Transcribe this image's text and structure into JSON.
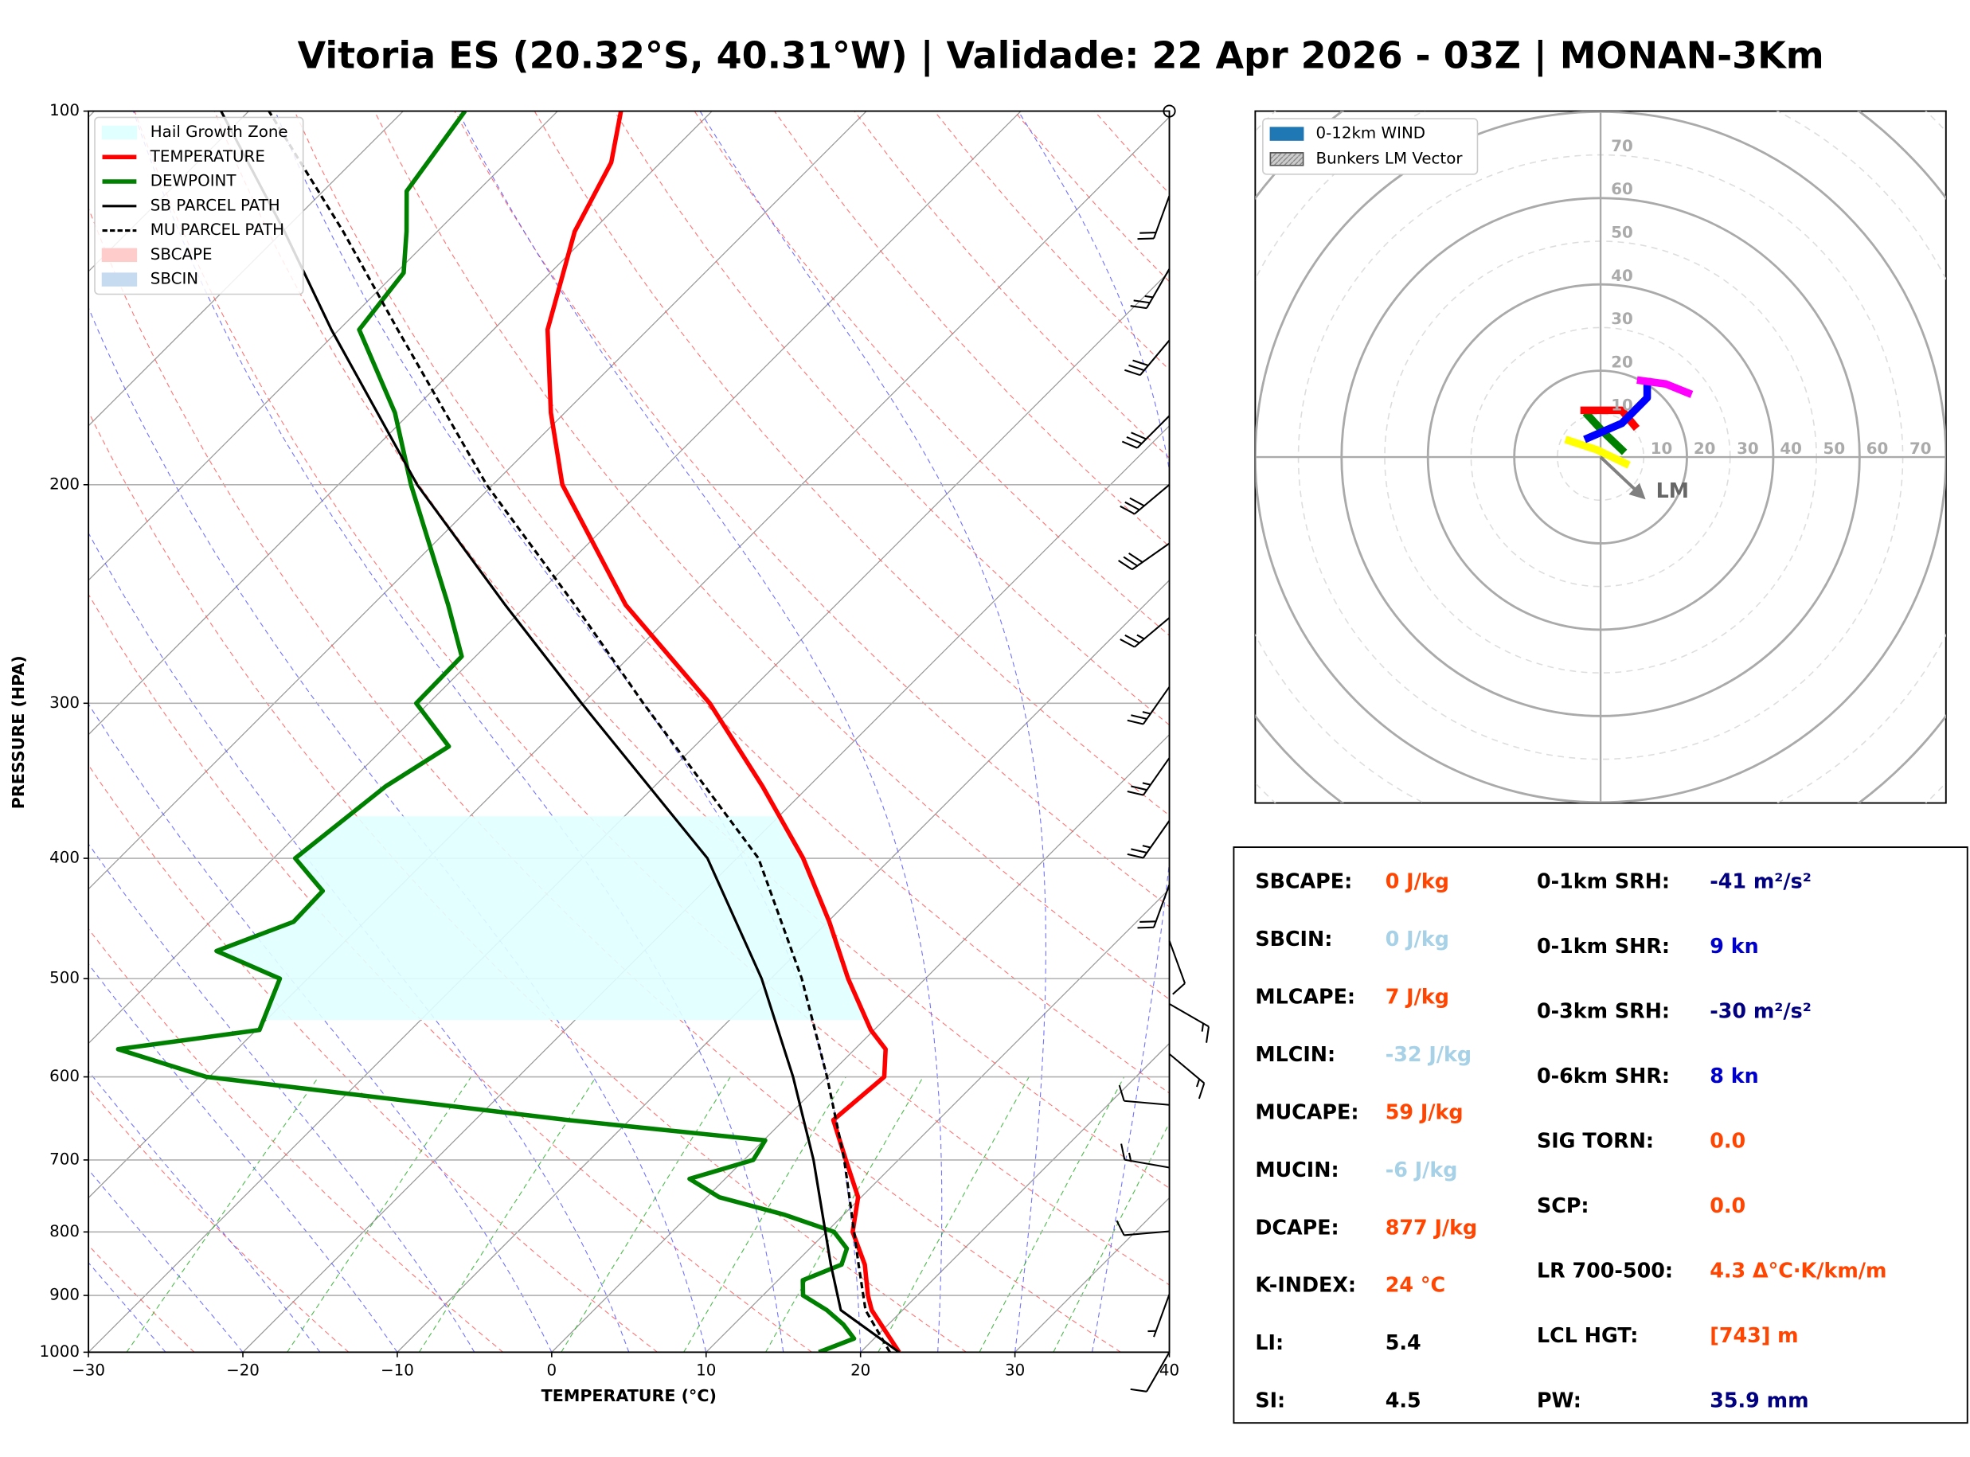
{
  "chart_data": [
    {
      "type": "skewt",
      "title": "Vitoria ES (20.32°S, 40.31°W) | Validade: 22 Apr 2026 - 03Z | MONAN-3Km",
      "xlabel": "TEMPERATURE (°C)",
      "ylabel": "PRESSURE (HPA)",
      "xlim": [
        -30,
        40
      ],
      "ylim": [
        1000,
        100
      ],
      "log_y": true,
      "xticks": [
        {
          "value": -30,
          "label": "−30"
        },
        {
          "value": -20,
          "label": "−20"
        },
        {
          "value": -10,
          "label": "−10"
        },
        0,
        10,
        20,
        30,
        40
      ],
      "yticks": [
        100,
        200,
        300,
        400,
        500,
        600,
        700,
        800,
        900,
        1000
      ],
      "grid": true,
      "legend": "upper left",
      "series": [
        {
          "name": "TEMPERATURE",
          "color": "#ff0000",
          "dash": false,
          "pressure": [
            1000,
            925,
            900,
            850,
            800,
            750,
            700,
            650,
            600,
            570,
            550,
            500,
            450,
            400,
            350,
            300,
            250,
            200,
            175,
            150,
            125,
            110,
            100
          ],
          "values": [
            22.5,
            18.0,
            16.8,
            14.6,
            11.7,
            9.8,
            6.6,
            3.2,
            3.7,
            2.0,
            -0.2,
            -5.0,
            -9.9,
            -15.7,
            -23.0,
            -31.8,
            -43.6,
            -55.5,
            -60.9,
            -66.5,
            -71.1,
            -73.2,
            -75.9
          ]
        },
        {
          "name": "DEWPOINT",
          "color": "#008000",
          "dash": false,
          "pressure": [
            1000,
            975,
            950,
            925,
            900,
            875,
            850,
            825,
            800,
            775,
            750,
            725,
            700,
            675,
            650,
            600,
            570,
            550,
            500,
            475,
            450,
            425,
            400,
            350,
            325,
            300,
            275,
            250,
            200,
            175,
            150,
            135,
            125,
            116,
            100
          ],
          "values": [
            17.3,
            18.7,
            17.1,
            15.1,
            12.6,
            11.6,
            13.1,
            12.4,
            10.5,
            6.2,
            0.8,
            -2.3,
            0.6,
            0.1,
            -14.0,
            -40.2,
            -47.7,
            -39.8,
            -41.8,
            -47.7,
            -44.6,
            -44.7,
            -48.6,
            -47.4,
            -45.9,
            -50.8,
            -50.9,
            -55.1,
            -65.3,
            -71.0,
            -78.7,
            -79.5,
            -82.0,
            -84.6,
            -86.0
          ]
        },
        {
          "name": "SB PARCEL PATH",
          "color": "#000000",
          "dash": false,
          "pressure": [
            1000,
            925,
            850,
            700,
            600,
            500,
            400,
            300,
            250,
            200,
            150,
            125,
            100
          ],
          "values": [
            22.5,
            16.0,
            12.4,
            4.5,
            -2.2,
            -10.6,
            -21.9,
            -40.1,
            -51.4,
            -64.9,
            -80.5,
            -89.9,
            -101.8
          ]
        },
        {
          "name": "MU PARCEL PATH",
          "color": "#000000",
          "dash": true,
          "pressure": [
            1000,
            925,
            850,
            700,
            600,
            500,
            400,
            300,
            250,
            200,
            150,
            125,
            100
          ],
          "values": [
            21.9,
            17.6,
            14.2,
            6.5,
            0.0,
            -8.0,
            -18.6,
            -36.1,
            -46.9,
            -60.4,
            -76.2,
            -86.1,
            -98.7
          ]
        }
      ],
      "areas": [
        {
          "name": "Hail Growth Zone",
          "color": "#e0ffff",
          "hpa": [
            540,
            370
          ]
        },
        {
          "name": "SBCAPE",
          "color": "#ffcccc"
        },
        {
          "name": "SBCIN",
          "color": "#c6dbef"
        }
      ],
      "wind": {
        "pressure": [
          117,
          134,
          153,
          176,
          200,
          223,
          256,
          291,
          332,
          373,
          420,
          466,
          524,
          575,
          632,
          710,
          799,
          898,
          1000
        ],
        "direction": [
          200,
          210,
          220,
          225,
          230,
          235,
          230,
          215,
          215,
          215,
          200,
          160,
          120,
          130,
          275,
          280,
          265,
          200,
          210
        ],
        "speed": [
          20,
          25,
          30,
          30,
          30,
          30,
          25,
          25,
          25,
          25,
          20,
          10,
          15,
          15,
          10,
          15,
          10,
          5,
          10
        ]
      }
    },
    {
      "type": "hodograph",
      "xlim": [
        -80,
        80
      ],
      "ylim": [
        -80,
        80
      ],
      "ticks": [
        10,
        20,
        30,
        40,
        50,
        60,
        70
      ],
      "legend": [
        {
          "name": "0-12km WIND",
          "color": "#1f77b4"
        },
        {
          "name": "Bunkers LM Vector",
          "color": "#999999"
        }
      ],
      "segments": [
        {
          "color": "#ffff00",
          "u": [
            5.8,
            -0.9,
            -7.3
          ],
          "v": [
            -1.5,
            1.7,
            3.8
          ]
        },
        {
          "color": "#008000",
          "u": [
            4.9,
            0.6,
            -2.9
          ],
          "v": [
            1.7,
            5.8,
            9.6
          ]
        },
        {
          "color": "#ff0000",
          "u": [
            -3.8,
            4.9,
            7.8
          ],
          "v": [
            10.8,
            10.8,
            7.3
          ]
        },
        {
          "color": "#0000ff",
          "u": [
            -2.9,
            4.9,
            10.8,
            10.8
          ],
          "v": [
            4.4,
            7.8,
            13.7,
            17.4
          ]
        },
        {
          "color": "#ff00ff",
          "u": [
            9.3,
            15.1,
            20.3
          ],
          "v": [
            17.7,
            16.9,
            14.8
          ]
        }
      ],
      "lm_vector": {
        "label": "LM",
        "u": 9.9,
        "v": -9.3
      }
    }
  ],
  "stats_panel": {
    "left": [
      {
        "label": "SBCAPE:",
        "value": "0 J/kg",
        "color": "#ff4500"
      },
      {
        "label": "SBCIN:",
        "value": "0 J/kg",
        "color": "#a6d1e6"
      },
      {
        "label": "MLCAPE:",
        "value": "7 J/kg",
        "color": "#ff4500"
      },
      {
        "label": "MLCIN:",
        "value": "-32 J/kg",
        "color": "#a6d1e6"
      },
      {
        "label": "MUCAPE:",
        "value": "59 J/kg",
        "color": "#ff4500"
      },
      {
        "label": "MUCIN:",
        "value": "-6 J/kg",
        "color": "#a6d1e6"
      },
      {
        "label": "DCAPE:",
        "value": "877 J/kg",
        "color": "#ff4500"
      },
      {
        "label": "K-INDEX:",
        "value": "24 °C",
        "color": "#ff4500"
      },
      {
        "label": "LI:",
        "value": "5.4",
        "color": "#000000"
      },
      {
        "label": "SI:",
        "value": "4.5",
        "color": "#000000"
      }
    ],
    "right": [
      {
        "label": "0-1km SRH:",
        "value": "-41 m²/s²",
        "color": "#000080"
      },
      {
        "label": "0-1km SHR:",
        "value": "9 kn",
        "color": "#0000cd"
      },
      {
        "label": "0-3km SRH:",
        "value": "-30 m²/s²",
        "color": "#000080"
      },
      {
        "label": "0-6km SHR:",
        "value": "8 kn",
        "color": "#0000cd"
      },
      {
        "label": "SIG TORN:",
        "value": "0.0",
        "color": "#ff4500"
      },
      {
        "label": "SCP:",
        "value": "0.0",
        "color": "#ff4500"
      },
      {
        "label": "LR 700-500:",
        "value": "4.3 Δ°C·K/km/m",
        "color": "#ff4500"
      },
      {
        "label": "LCL HGT:",
        "value": "[743] m",
        "color": "#ff4500"
      },
      {
        "label": "PW:",
        "value": "35.9 mm",
        "color": "#000080"
      }
    ]
  }
}
